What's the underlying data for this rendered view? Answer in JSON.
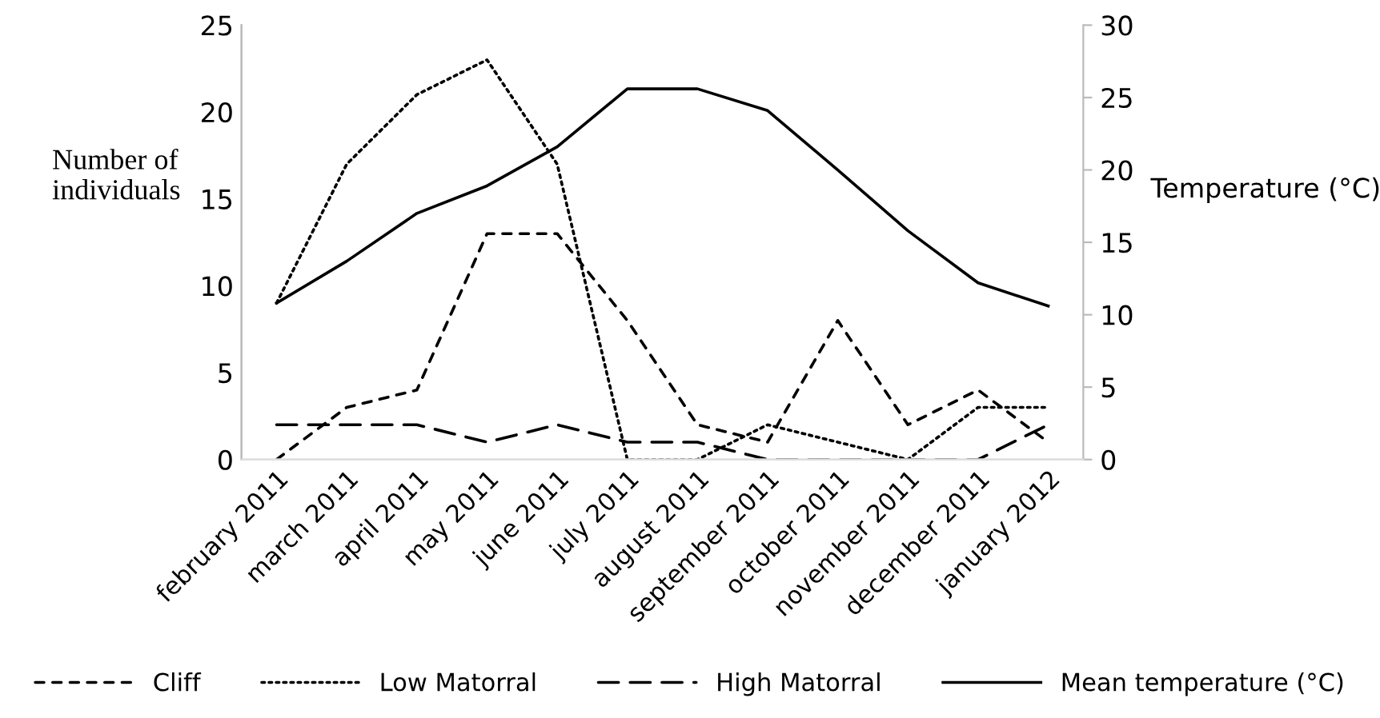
{
  "chart_data": {
    "type": "line",
    "categories": [
      "february 2011",
      "march 2011",
      "april 2011",
      "may 2011",
      "june 2011",
      "july 2011",
      "august 2011",
      "september 2011",
      "october 2011",
      "november 2011",
      "december 2011",
      "january 2012"
    ],
    "ylabel": "Number of\nindividuals",
    "y2label": "Temperature (°C)",
    "ylim": [
      0,
      25
    ],
    "yticks": [
      0,
      5,
      10,
      15,
      20,
      25
    ],
    "y2lim": [
      0,
      30
    ],
    "y2ticks": [
      0,
      5,
      10,
      15,
      20,
      25,
      30
    ],
    "grid": false,
    "legend": "bottom",
    "marker": "none",
    "series": [
      {
        "name": "Cliff",
        "color": "#000000",
        "line_style": "dashed",
        "values": [
          0,
          3,
          4,
          13,
          13,
          8,
          2,
          1,
          8,
          2,
          4,
          1
        ]
      },
      {
        "name": "Low Matorral",
        "color": "#000000",
        "line_style": "dotted",
        "values": [
          9,
          17,
          21,
          23,
          17,
          0,
          0,
          2,
          1,
          0,
          3,
          3
        ]
      },
      {
        "name": "High Matorral",
        "color": "#000000",
        "line_style": "longdash",
        "values": [
          2,
          2,
          2,
          1,
          2,
          1,
          1,
          0,
          0,
          0,
          0,
          2
        ]
      },
      {
        "name": "Mean temperature (°C)",
        "color": "#000000",
        "line_style": "solid",
        "axis": "y2",
        "values": [
          10.8,
          13.7,
          17.0,
          18.9,
          21.6,
          25.6,
          25.6,
          24.1,
          20.0,
          15.8,
          12.2,
          10.6
        ]
      }
    ]
  }
}
